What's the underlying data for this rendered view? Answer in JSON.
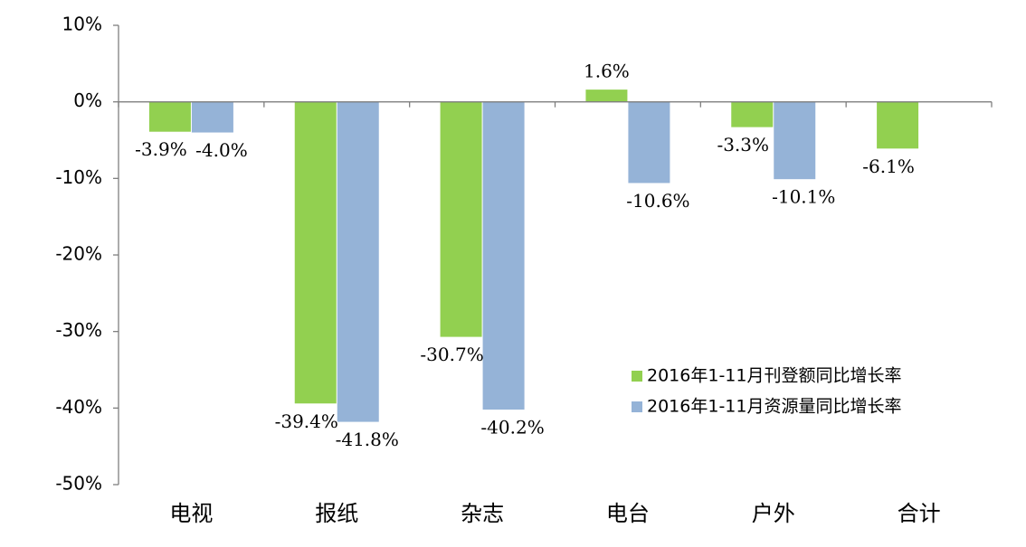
{
  "chart_data": {
    "type": "bar",
    "categories": [
      "电视",
      "报纸",
      "杂志",
      "电台",
      "户外",
      "合计"
    ],
    "series": [
      {
        "name": "2016年1-11月刊登额同比增长率",
        "color": "#92d050",
        "values": [
          -3.9,
          -39.4,
          -30.7,
          1.6,
          -3.3,
          -6.1
        ],
        "labels": [
          "-3.9%",
          "-39.4%",
          "-30.7%",
          "1.6%",
          "-3.3%",
          "-6.1%"
        ]
      },
      {
        "name": "2016年1-11月资源量同比增长率",
        "color": "#95b3d7",
        "values": [
          -4.0,
          -41.8,
          -40.2,
          -10.6,
          -10.1,
          null
        ],
        "labels": [
          "-4.0%",
          "-41.8%",
          "-40.2%",
          "-10.6%",
          "-10.1%",
          null
        ]
      }
    ],
    "ylim": [
      -50,
      10
    ],
    "yticks": [
      10,
      0,
      -10,
      -20,
      -30,
      -40,
      -50
    ],
    "ytick_labels": [
      "10%",
      "0%",
      "-10%",
      "-20%",
      "-30%",
      "-40%",
      "-50%"
    ],
    "grid": false,
    "legend_position": "bottom-right"
  }
}
